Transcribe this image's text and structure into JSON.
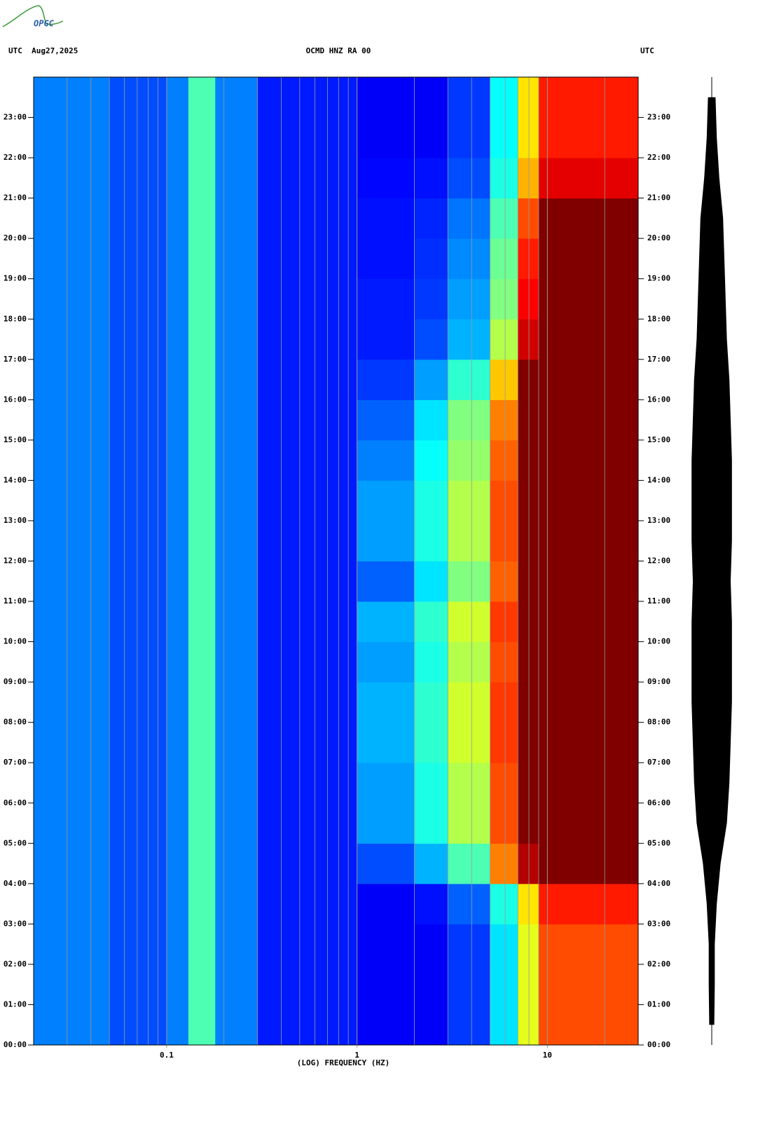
{
  "logo": "OPGC",
  "chart_data": {
    "type": "spectrogram",
    "title": "OCMD HNZ RA 00",
    "date_label": "UTC  Aug27,2025",
    "right_label": "UTC",
    "xlabel": "(LOG) FREQUENCY (HZ)",
    "xscale": "log",
    "xlim": [
      0.02,
      30
    ],
    "xticks": [
      0.1,
      1,
      10
    ],
    "xgrid": [
      0.03,
      0.04,
      0.05,
      0.06,
      0.07,
      0.08,
      0.09,
      0.2,
      0.3,
      0.4,
      0.5,
      0.6,
      0.7,
      0.8,
      0.9,
      2,
      3,
      4,
      5,
      6,
      7,
      8,
      9,
      20
    ],
    "ylim": [
      0,
      24
    ],
    "yticks": [
      {
        "value": 0,
        "label": "00:00"
      },
      {
        "value": 1,
        "label": "01:00"
      },
      {
        "value": 2,
        "label": "02:00"
      },
      {
        "value": 3,
        "label": "03:00"
      },
      {
        "value": 4,
        "label": "04:00"
      },
      {
        "value": 5,
        "label": "05:00"
      },
      {
        "value": 6,
        "label": "06:00"
      },
      {
        "value": 7,
        "label": "07:00"
      },
      {
        "value": 8,
        "label": "08:00"
      },
      {
        "value": 9,
        "label": "09:00"
      },
      {
        "value": 10,
        "label": "10:00"
      },
      {
        "value": 11,
        "label": "11:00"
      },
      {
        "value": 12,
        "label": "12:00"
      },
      {
        "value": 13,
        "label": "13:00"
      },
      {
        "value": 14,
        "label": "14:00"
      },
      {
        "value": 15,
        "label": "15:00"
      },
      {
        "value": 16,
        "label": "16:00"
      },
      {
        "value": 17,
        "label": "17:00"
      },
      {
        "value": 18,
        "label": "18:00"
      },
      {
        "value": 19,
        "label": "19:00"
      },
      {
        "value": 20,
        "label": "20:00"
      },
      {
        "value": 21,
        "label": "21:00"
      },
      {
        "value": 22,
        "label": "22:00"
      },
      {
        "value": 23,
        "label": "23:00"
      }
    ],
    "xbins": [
      0.02,
      0.05,
      0.1,
      0.13,
      0.18,
      0.3,
      1,
      2,
      3,
      5,
      7,
      9,
      30
    ],
    "ybins": [
      0,
      1,
      2,
      3,
      4,
      5,
      6,
      7,
      8,
      9,
      10,
      11,
      12,
      13,
      14,
      15,
      16,
      17,
      18,
      19,
      20,
      21,
      22,
      23,
      24
    ],
    "colormap": "jet",
    "z": [
      [
        0.25,
        0.2,
        0.25,
        0.45,
        0.25,
        0.15,
        0.12,
        0.12,
        0.18,
        0.35,
        0.6,
        0.8
      ],
      [
        0.25,
        0.2,
        0.25,
        0.45,
        0.25,
        0.15,
        0.12,
        0.12,
        0.18,
        0.35,
        0.6,
        0.8
      ],
      [
        0.25,
        0.2,
        0.25,
        0.45,
        0.25,
        0.15,
        0.12,
        0.12,
        0.18,
        0.35,
        0.6,
        0.8
      ],
      [
        0.25,
        0.2,
        0.25,
        0.45,
        0.25,
        0.15,
        0.12,
        0.14,
        0.22,
        0.4,
        0.65,
        0.85
      ],
      [
        0.25,
        0.2,
        0.25,
        0.45,
        0.25,
        0.15,
        0.2,
        0.3,
        0.45,
        0.75,
        0.95,
        1
      ],
      [
        0.25,
        0.2,
        0.25,
        0.45,
        0.25,
        0.15,
        0.28,
        0.4,
        0.55,
        0.8,
        1,
        1
      ],
      [
        0.25,
        0.2,
        0.25,
        0.45,
        0.25,
        0.15,
        0.28,
        0.4,
        0.55,
        0.8,
        1,
        1
      ],
      [
        0.25,
        0.2,
        0.25,
        0.45,
        0.25,
        0.15,
        0.3,
        0.42,
        0.58,
        0.82,
        1,
        1
      ],
      [
        0.25,
        0.2,
        0.25,
        0.45,
        0.25,
        0.15,
        0.3,
        0.42,
        0.58,
        0.82,
        1,
        1
      ],
      [
        0.25,
        0.2,
        0.25,
        0.45,
        0.25,
        0.15,
        0.28,
        0.4,
        0.55,
        0.8,
        1,
        1
      ],
      [
        0.25,
        0.2,
        0.25,
        0.45,
        0.25,
        0.15,
        0.3,
        0.42,
        0.58,
        0.82,
        1,
        1
      ],
      [
        0.25,
        0.2,
        0.25,
        0.45,
        0.25,
        0.15,
        0.22,
        0.35,
        0.5,
        0.78,
        1,
        1
      ],
      [
        0.25,
        0.2,
        0.25,
        0.45,
        0.25,
        0.15,
        0.28,
        0.4,
        0.55,
        0.8,
        1,
        1
      ],
      [
        0.25,
        0.2,
        0.25,
        0.45,
        0.25,
        0.15,
        0.28,
        0.4,
        0.55,
        0.8,
        1,
        1
      ],
      [
        0.25,
        0.2,
        0.25,
        0.45,
        0.25,
        0.15,
        0.25,
        0.38,
        0.52,
        0.78,
        1,
        1
      ],
      [
        0.25,
        0.2,
        0.25,
        0.45,
        0.25,
        0.15,
        0.22,
        0.35,
        0.5,
        0.75,
        1,
        1
      ],
      [
        0.25,
        0.2,
        0.25,
        0.45,
        0.25,
        0.15,
        0.18,
        0.28,
        0.42,
        0.68,
        1,
        1
      ],
      [
        0.25,
        0.2,
        0.25,
        0.45,
        0.25,
        0.15,
        0.15,
        0.2,
        0.3,
        0.55,
        0.92,
        1
      ],
      [
        0.25,
        0.2,
        0.25,
        0.45,
        0.25,
        0.15,
        0.15,
        0.18,
        0.28,
        0.5,
        0.88,
        1
      ],
      [
        0.25,
        0.2,
        0.25,
        0.45,
        0.25,
        0.15,
        0.14,
        0.17,
        0.26,
        0.48,
        0.85,
        1
      ],
      [
        0.25,
        0.2,
        0.25,
        0.45,
        0.25,
        0.15,
        0.14,
        0.16,
        0.24,
        0.45,
        0.8,
        1
      ],
      [
        0.25,
        0.2,
        0.25,
        0.45,
        0.25,
        0.15,
        0.13,
        0.14,
        0.2,
        0.4,
        0.7,
        0.9
      ],
      [
        0.25,
        0.2,
        0.25,
        0.45,
        0.25,
        0.15,
        0.12,
        0.12,
        0.18,
        0.38,
        0.65,
        0.85
      ],
      [
        0.25,
        0.2,
        0.25,
        0.45,
        0.25,
        0.15,
        0.12,
        0.12,
        0.18,
        0.38,
        0.65,
        0.85
      ]
    ],
    "trace": [
      0.1,
      0.12,
      0.12,
      0.2,
      0.35,
      0.6,
      0.7,
      0.75,
      0.8,
      0.8,
      0.8,
      0.75,
      0.8,
      0.8,
      0.8,
      0.75,
      0.7,
      0.6,
      0.55,
      0.5,
      0.45,
      0.3,
      0.2,
      0.15
    ]
  }
}
